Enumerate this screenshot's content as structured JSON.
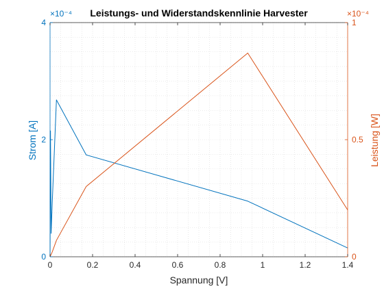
{
  "chart_data": {
    "type": "line",
    "title": "Leistungs- und Widerstandskennlinie Harvester",
    "xlabel": "Spannung [V]",
    "xlim": [
      0,
      1.4
    ],
    "x_ticks": [
      "0",
      "0.2",
      "0.4",
      "0.6",
      "0.8",
      "1",
      "1.2",
      "1.4"
    ],
    "x_tick_values": [
      0,
      0.2,
      0.4,
      0.6,
      0.8,
      1.0,
      1.2,
      1.4
    ],
    "grid": true,
    "grid_style": "dotted",
    "y_left": {
      "label": "Strom [A]",
      "exponent": "×10⁻⁴",
      "ylim": [
        0,
        4
      ],
      "ticks": [
        "0",
        "2",
        "4"
      ],
      "tick_values": [
        0,
        2,
        4
      ],
      "color": "#0072BD"
    },
    "y_right": {
      "label": "Leistung [W]",
      "exponent": "×10⁻⁴",
      "ylim": [
        0,
        1
      ],
      "ticks": [
        "0",
        "0.5",
        "1"
      ],
      "tick_values": [
        0,
        0.5,
        1
      ],
      "color": "#D95319"
    },
    "series": [
      {
        "axis": "left",
        "color": "#0072BD",
        "x": [
          0,
          0.002,
          0.005,
          0.01,
          0.03,
          0.17,
          0.93,
          1.4
        ],
        "y": [
          0,
          2.15,
          0.4,
          0.9,
          2.68,
          1.74,
          0.95,
          0.15
        ]
      },
      {
        "axis": "right",
        "color": "#D95319",
        "x": [
          0,
          0.005,
          0.01,
          0.03,
          0.17,
          0.93,
          1.4
        ],
        "y": [
          0,
          0.01,
          0.02,
          0.07,
          0.3,
          0.87,
          0.2
        ]
      }
    ]
  }
}
